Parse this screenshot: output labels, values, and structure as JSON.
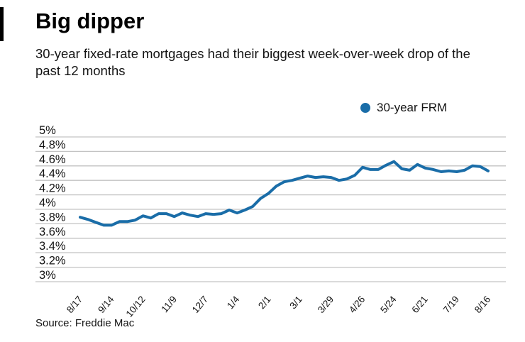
{
  "chart_data": {
    "type": "line",
    "title": "Big dipper",
    "subtitle": "30-year fixed-rate mortgages had their biggest week-over-week drop of the past 12 months",
    "source": "Source: Freddie Mac",
    "ylim": [
      3,
      5
    ],
    "grid": true,
    "grid_color": "#c3c3c3",
    "legend_position": "top-right",
    "y_ticks": [
      {
        "value": 5,
        "label": "5%"
      },
      {
        "value": 4.8,
        "label": "4.8%"
      },
      {
        "value": 4.6,
        "label": "4.6%"
      },
      {
        "value": 4.4,
        "label": "4.4%"
      },
      {
        "value": 4.2,
        "label": "4.2%"
      },
      {
        "value": 4,
        "label": "4%"
      },
      {
        "value": 3.8,
        "label": "3.8%"
      },
      {
        "value": 3.6,
        "label": "3.6%"
      },
      {
        "value": 3.4,
        "label": "3.4%"
      },
      {
        "value": 3.2,
        "label": "3.2%"
      },
      {
        "value": 3,
        "label": "3%"
      }
    ],
    "x_tick_labels": [
      "8/17",
      "9/14",
      "10/12",
      "11/9",
      "12/7",
      "1/4",
      "2/1",
      "3/1",
      "3/29",
      "4/26",
      "5/24",
      "6/21",
      "7/19",
      "8/16"
    ],
    "x_tick_every": 4,
    "series": [
      {
        "name": "30-year FRM",
        "color": "#1a6da8",
        "values": [
          3.89,
          3.86,
          3.82,
          3.78,
          3.78,
          3.83,
          3.83,
          3.85,
          3.91,
          3.88,
          3.94,
          3.94,
          3.9,
          3.95,
          3.92,
          3.9,
          3.94,
          3.93,
          3.94,
          3.99,
          3.95,
          3.99,
          4.04,
          4.15,
          4.22,
          4.32,
          4.38,
          4.4,
          4.43,
          4.46,
          4.44,
          4.45,
          4.44,
          4.4,
          4.42,
          4.47,
          4.58,
          4.55,
          4.55,
          4.61,
          4.66,
          4.56,
          4.54,
          4.62,
          4.57,
          4.55,
          4.52,
          4.53,
          4.52,
          4.54,
          4.6,
          4.59,
          4.53
        ]
      }
    ]
  }
}
